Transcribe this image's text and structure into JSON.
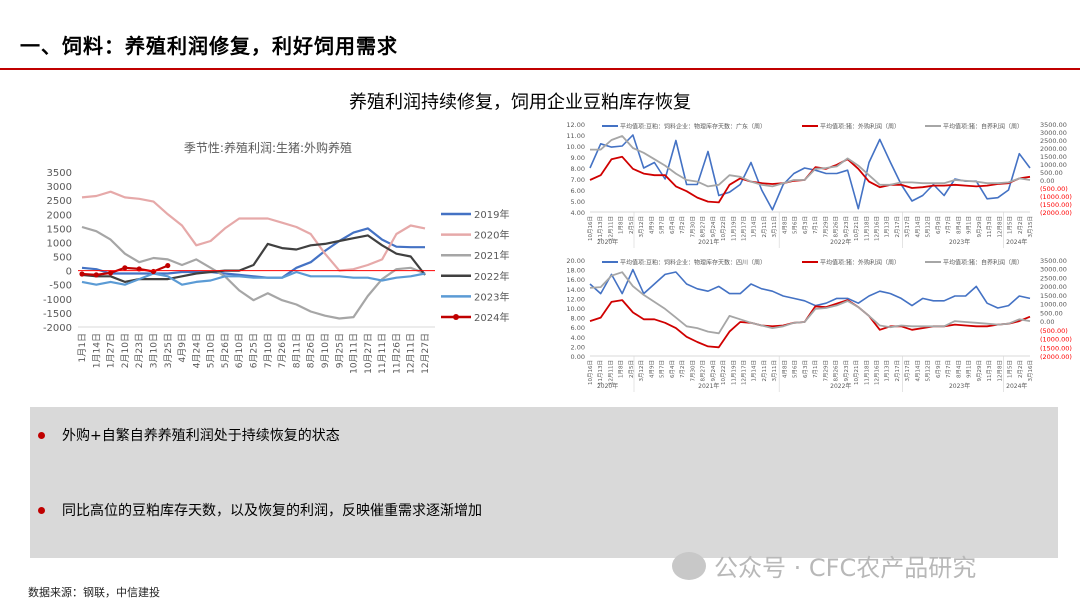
{
  "header": {
    "title": "一、饲料：养殖利润修复，利好饲用需求",
    "subtitle": "养殖利润持续修复，饲用企业豆粕库存恢复"
  },
  "bullets": [
    "外购+自繁自养养殖利润处于持续恢复的状态",
    "同比高位的豆粕库存天数，以及恢复的利润，反映催重需求逐渐增加"
  ],
  "footer": "数据来源：钢联，中信建投",
  "watermark": "公众号 · CFC农产品研究",
  "chart_data": [
    {
      "type": "line",
      "title": "季节性:养殖利润:生猪:外购养殖",
      "ylim": [
        -2000,
        3500
      ],
      "yticks": [
        "3500",
        "3000",
        "2500",
        "2000",
        "1500",
        "1000",
        "500",
        "0",
        "-500",
        "-1000",
        "-1500",
        "-2000"
      ],
      "legend": "right",
      "reference_line": {
        "y": 0,
        "color": "#ff0000"
      },
      "categories": [
        "1月1日",
        "1月14日",
        "1月27日",
        "2月10日",
        "2月23日",
        "3月10日",
        "3月25日",
        "4月9日",
        "4月24日",
        "5月10日",
        "5月26日",
        "6月10日",
        "6月25日",
        "7月10日",
        "7月26日",
        "8月11日",
        "8月26日",
        "9月10日",
        "9月25日",
        "10月11日",
        "10月27日",
        "11月11日",
        "11月26日",
        "12月11日",
        "12月27日"
      ],
      "series": [
        {
          "name": "2019年",
          "color": "#4472c4",
          "values": [
            100,
            50,
            -100,
            -100,
            -100,
            -100,
            -100,
            -50,
            -50,
            -50,
            -100,
            -150,
            -200,
            -250,
            -250,
            100,
            300,
            700,
            1050,
            1350,
            1500,
            1100,
            850,
            830,
            830
          ]
        },
        {
          "name": "2020年",
          "color": "#e6a9a9",
          "values": [
            2600,
            2650,
            2800,
            2600,
            2550,
            2450,
            2000,
            1600,
            900,
            1050,
            1500,
            1850,
            1850,
            1850,
            1700,
            1550,
            1300,
            600,
            0,
            50,
            200,
            400,
            1300,
            1600,
            1500
          ]
        },
        {
          "name": "2021年",
          "color": "#a6a6a6",
          "values": [
            1550,
            1400,
            1100,
            600,
            300,
            450,
            400,
            200,
            400,
            100,
            -200,
            -700,
            -1050,
            -800,
            -1050,
            -1200,
            -1450,
            -1600,
            -1700,
            -1650,
            -900,
            -300,
            50,
            100,
            -100
          ]
        },
        {
          "name": "2022年",
          "color": "#404040",
          "values": [
            -150,
            -200,
            -200,
            -400,
            -300,
            -300,
            -300,
            -200,
            -100,
            -50,
            0,
            0,
            200,
            950,
            800,
            750,
            900,
            950,
            1050,
            1150,
            1250,
            900,
            600,
            500,
            -150
          ]
        },
        {
          "name": "2023年",
          "color": "#5b9bd5",
          "values": [
            -400,
            -500,
            -400,
            -500,
            -300,
            -100,
            -200,
            -500,
            -400,
            -350,
            -200,
            -200,
            -250,
            -250,
            -250,
            -50,
            -200,
            -200,
            -200,
            -250,
            -250,
            -350,
            -250,
            -200,
            -100
          ]
        },
        {
          "name": "2024年",
          "color": "#c00000",
          "markers": true,
          "values": [
            -120,
            -150,
            -80,
            100,
            60,
            -30,
            180,
            null,
            null,
            null,
            null,
            null,
            null,
            null,
            null,
            null,
            null,
            null,
            null,
            null,
            null,
            null,
            null,
            null,
            null
          ]
        }
      ]
    },
    {
      "type": "line",
      "ylim_left": [
        4,
        12
      ],
      "ylim_right": [
        -2000,
        3500
      ],
      "yticks_left": [
        "12.00",
        "11.00",
        "10.00",
        "9.00",
        "8.00",
        "7.00",
        "6.00",
        "5.00",
        "4.00"
      ],
      "yticks_right": [
        "3500.00",
        "3000.00",
        "2500.00",
        "2000.00",
        "1500.00",
        "1000.00",
        "500.00",
        "0.00",
        "(500.00)",
        "(1000.00)",
        "(1500.00)",
        "(2000.00)"
      ],
      "legend": "top",
      "x_tick_labels": [
        "10月16日",
        "11月13日",
        "12月11日",
        "1月8日",
        "2月5日",
        "3月12日",
        "4月9日",
        "5月7日",
        "6月4日",
        "7月2日",
        "7月30日",
        "8月27日",
        "9月24日",
        "10月22日",
        "11月19日",
        "12月17日",
        "1月14日",
        "2月11日",
        "3月11日",
        "4月8日",
        "5月6日",
        "6月3日",
        "7月1日",
        "7月29日",
        "8月26日",
        "9月23日",
        "10月21日",
        "11月18日",
        "12月16日",
        "1月13日",
        "2月17日",
        "3月17日",
        "4月14日",
        "5月12日",
        "6月9日",
        "7月7日",
        "8月4日",
        "9月1日",
        "9月29日",
        "11月3日",
        "12月8日",
        "1月5日",
        "2月2日",
        "3月15日"
      ],
      "years": [
        "2020年",
        "2021年",
        "2022年",
        "2023年",
        "2024年"
      ],
      "series": [
        {
          "name": "平均值项:豆粕：饲料企业：物理库存天数：广东（周）",
          "axis": "left",
          "color": "#4472c4",
          "values": [
            8.0,
            10.2,
            9.9,
            10.0,
            11.0,
            8.0,
            8.5,
            7.0,
            10.5,
            6.5,
            6.5,
            9.5,
            5.5,
            5.8,
            6.5,
            8.5,
            6.0,
            4.2,
            6.5,
            7.5,
            8.0,
            7.8,
            7.5,
            7.5,
            7.8,
            4.3,
            8.5,
            10.6,
            8.5,
            6.5,
            5.0,
            5.5,
            6.5,
            5.5,
            7.0,
            6.8,
            6.8,
            5.2,
            5.3,
            6.0,
            9.3,
            8.0
          ]
        },
        {
          "name": "平均值项:猪：外购利润（周）",
          "axis": "right",
          "color": "#d00000",
          "values": [
            0,
            300,
            1300,
            1450,
            700,
            400,
            300,
            300,
            -400,
            -700,
            -1100,
            -1350,
            -1400,
            -300,
            100,
            -100,
            -200,
            -250,
            -200,
            -50,
            0,
            800,
            700,
            950,
            1300,
            700,
            -100,
            -450,
            -300,
            -300,
            -500,
            -450,
            -350,
            -350,
            -300,
            -350,
            -400,
            -350,
            -250,
            -200,
            100,
            200
          ]
        },
        {
          "name": "平均值项:猪：自养利润（周）",
          "axis": "right",
          "color": "#a6a6a6",
          "values": [
            1900,
            1900,
            2500,
            2750,
            2000,
            1700,
            1300,
            900,
            400,
            0,
            -100,
            -400,
            -300,
            300,
            200,
            -100,
            -300,
            -400,
            -200,
            0,
            0,
            700,
            750,
            850,
            1350,
            900,
            300,
            -300,
            -300,
            -150,
            -150,
            -200,
            -200,
            -200,
            0,
            -50,
            -100,
            -200,
            -200,
            -150,
            100,
            0
          ]
        }
      ]
    },
    {
      "type": "line",
      "ylim_left": [
        0,
        20
      ],
      "ylim_right": [
        -2000,
        3500
      ],
      "yticks_left": [
        "20.00",
        "18.00",
        "16.00",
        "14.00",
        "12.00",
        "10.00",
        "8.00",
        "6.00",
        "4.00",
        "2.00",
        "0.00"
      ],
      "yticks_right": [
        "3500.00",
        "3000.00",
        "2500.00",
        "2000.00",
        "1500.00",
        "1000.00",
        "500.00",
        "0.00",
        "(500.00)",
        "(1000.00)",
        "(1500.00)",
        "(2000.00)"
      ],
      "legend": "top",
      "x_tick_labels": [
        "10月16日",
        "11月13日",
        "12月11日",
        "1月8日",
        "2月5日",
        "3月12日",
        "4月9日",
        "5月7日",
        "6月4日",
        "7月2日",
        "7月30日",
        "8月27日",
        "9月24日",
        "10月22日",
        "11月19日",
        "12月17日",
        "1月14日",
        "2月11日",
        "3月11日",
        "4月8日",
        "5月6日",
        "6月3日",
        "7月1日",
        "7月29日",
        "8月26日",
        "9月23日",
        "10月21日",
        "11月18日",
        "12月16日",
        "1月13日",
        "2月17日",
        "3月17日",
        "4月14日",
        "5月12日",
        "6月9日",
        "7月7日",
        "8月4日",
        "9月1日",
        "9月29日",
        "11月3日",
        "12月8日",
        "1月5日",
        "2月2日",
        "3月16日"
      ],
      "years": [
        "2020年",
        "2021年",
        "2022年",
        "2023年",
        "2024年"
      ],
      "series": [
        {
          "name": "平均值项:豆粕：饲料企业：物理库存天数：四川（周）",
          "axis": "left",
          "color": "#4472c4",
          "values": [
            15,
            13,
            17,
            13,
            18,
            13,
            15,
            17,
            17.5,
            15,
            14,
            13.5,
            14.5,
            13,
            13,
            15,
            14,
            13.5,
            12.5,
            12,
            11.5,
            10.5,
            11,
            12,
            12,
            11,
            12.5,
            13.5,
            13,
            12,
            10.5,
            12,
            11.5,
            11.5,
            12.5,
            12.5,
            14.5,
            11,
            10,
            10.5,
            12.5,
            12
          ]
        },
        {
          "name": "平均值项:猪：外购利润（周）",
          "axis": "right",
          "color": "#d00000",
          "values": [
            0,
            200,
            1100,
            1200,
            500,
            100,
            100,
            -100,
            -400,
            -900,
            -1200,
            -1450,
            -1500,
            -600,
            -50,
            -100,
            -250,
            -300,
            -250,
            -100,
            -50,
            850,
            800,
            1000,
            1200,
            800,
            300,
            -500,
            -300,
            -300,
            -500,
            -400,
            -300,
            -300,
            -200,
            -250,
            -300,
            -300,
            -200,
            -150,
            0,
            250
          ]
        },
        {
          "name": "平均值项:猪：自养利润（周）",
          "axis": "right",
          "color": "#a6a6a6",
          "values": [
            1900,
            1950,
            2600,
            2800,
            2000,
            1500,
            1100,
            700,
            200,
            -300,
            -400,
            -600,
            -700,
            300,
            100,
            -100,
            -250,
            -400,
            -300,
            -100,
            -50,
            700,
            750,
            900,
            1150,
            800,
            300,
            -250,
            -350,
            -250,
            -300,
            -300,
            -300,
            -300,
            0,
            -50,
            -100,
            -150,
            -200,
            -150,
            100,
            0
          ]
        }
      ]
    }
  ]
}
